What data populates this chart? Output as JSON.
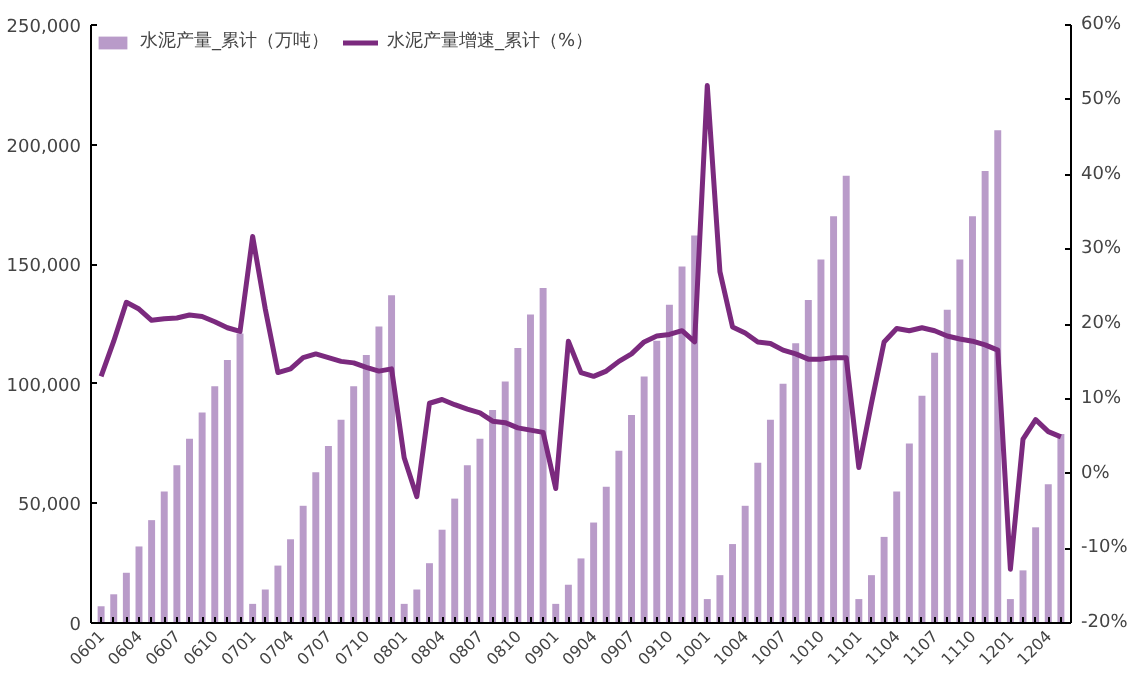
{
  "chart_data": {
    "type": "bar",
    "categories": [
      "0601",
      null,
      null,
      "0604",
      null,
      null,
      "0607",
      null,
      null,
      "0610",
      null,
      null,
      "0701",
      null,
      null,
      "0704",
      null,
      null,
      "0707",
      null,
      null,
      "0710",
      null,
      null,
      "0801",
      null,
      null,
      "0804",
      null,
      null,
      "0807",
      null,
      null,
      "0810",
      null,
      null,
      "0901",
      null,
      null,
      "0904",
      null,
      null,
      "0907",
      null,
      null,
      "0910",
      null,
      null,
      "1001",
      null,
      null,
      "1004",
      null,
      null,
      "1007",
      null,
      null,
      "1010",
      null,
      null,
      "1101",
      null,
      null,
      "1104",
      null,
      null,
      "1107",
      null,
      null,
      "1110",
      null,
      null,
      "1201",
      null,
      null,
      "1204",
      null
    ],
    "series": [
      {
        "name": "水泥产量_累计（万吨）",
        "color": "#b99bc9",
        "values": [
          7000,
          12000,
          21000,
          32000,
          43000,
          55000,
          66000,
          77000,
          88000,
          99000,
          110000,
          121000,
          8000,
          14000,
          24000,
          35000,
          49000,
          63000,
          74000,
          85000,
          99000,
          112000,
          124000,
          137000,
          8000,
          14000,
          25000,
          39000,
          52000,
          66000,
          77000,
          89000,
          101000,
          115000,
          129000,
          140000,
          8000,
          16000,
          27000,
          42000,
          57000,
          72000,
          87000,
          103000,
          118000,
          133000,
          149000,
          162000,
          10000,
          20000,
          33000,
          49000,
          67000,
          85000,
          100000,
          117000,
          135000,
          152000,
          170000,
          187000,
          10000,
          20000,
          36000,
          55000,
          75000,
          95000,
          113000,
          131000,
          152000,
          170000,
          189000,
          206000,
          10000,
          22000,
          40000,
          58000,
          79000
        ]
      },
      {
        "name": "水泥产量增速_累计（%）",
        "type": "line",
        "axis": "y2",
        "color": "#7b2a7e",
        "values": [
          13,
          17.7,
          22.9,
          22,
          20.5,
          20.7,
          20.8,
          21.2,
          21,
          20.3,
          19.5,
          19,
          31.7,
          22,
          13.5,
          14,
          15.5,
          16,
          15.5,
          15,
          14.8,
          14.2,
          13.7,
          14,
          2.1,
          -3.1,
          9.4,
          9.9,
          9.2,
          8.6,
          8.1,
          7,
          6.8,
          6.1,
          5.8,
          5.5,
          -2,
          17.7,
          13.5,
          13,
          13.7,
          15,
          16,
          17.6,
          18.4,
          18.6,
          19.1,
          17.6,
          51.9,
          27,
          19.6,
          18.8,
          17.6,
          17.4,
          16.5,
          16,
          15.3,
          15.3,
          15.5,
          15.5,
          0.8,
          9.4,
          17.6,
          19.4,
          19.1,
          19.5,
          19.1,
          18.4,
          18,
          17.7,
          17.2,
          16.5,
          -12.8,
          4.6,
          7.2,
          5.6,
          4.9
        ]
      }
    ],
    "ylim": [
      0,
      250000
    ],
    "yticks": [
      {
        "value": 0,
        "label": "0"
      },
      {
        "value": 50000,
        "label": "50,000"
      },
      {
        "value": 100000,
        "label": "100,000"
      },
      {
        "value": 150000,
        "label": "150,000"
      },
      {
        "value": 200000,
        "label": "200,000"
      },
      {
        "value": 250000,
        "label": "250,000"
      }
    ],
    "y2lim": [
      -20,
      60
    ],
    "y2ticks": [
      {
        "value": -20,
        "label": "-20%"
      },
      {
        "value": -10,
        "label": "-10%"
      },
      {
        "value": 0,
        "label": "0%"
      },
      {
        "value": 10,
        "label": "10%"
      },
      {
        "value": 20,
        "label": "20%"
      },
      {
        "value": 30,
        "label": "30%"
      },
      {
        "value": 40,
        "label": "40%"
      },
      {
        "value": 50,
        "label": "50%"
      },
      {
        "value": 60,
        "label": "60%"
      }
    ],
    "legend": "top left",
    "grid": false
  }
}
